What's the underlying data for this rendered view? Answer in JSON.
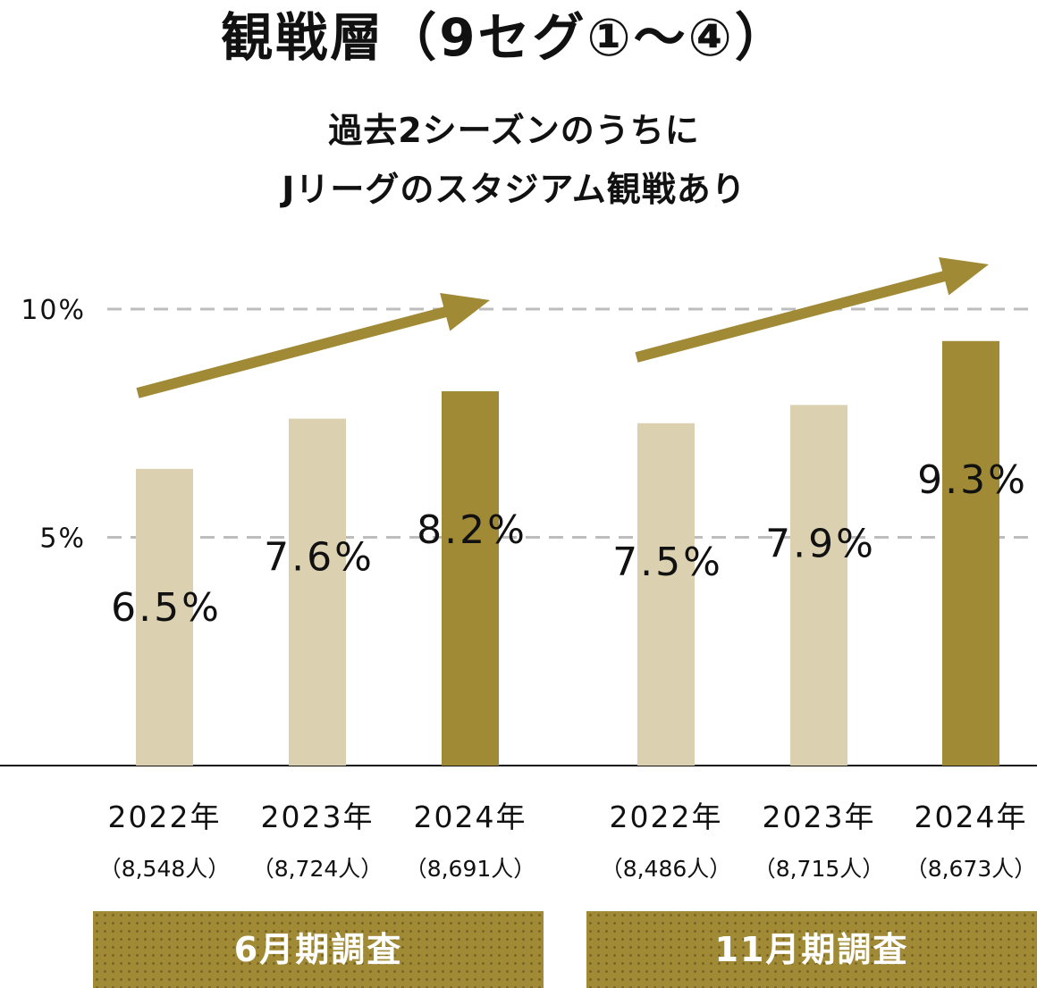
{
  "title": "観戦層（9セグ①～④）",
  "subtitle_lines": [
    "過去2シーズンのうちに",
    "Jリーグのスタジアム観戦あり"
  ],
  "colors": {
    "light_bar": "#dbd1b0",
    "dark_bar": "#a08a36",
    "arrow": "#a08a36",
    "grid": "#bdbdbd",
    "axis": "#111111"
  },
  "chart_data": {
    "type": "bar",
    "title": "観戦層（9セグ①～④）",
    "ylim": [
      0,
      10
    ],
    "yticks": [
      {
        "value": 5,
        "label": "5%"
      },
      {
        "value": 10,
        "label": "10%"
      }
    ],
    "grid": "dashed at ticks",
    "groups": [
      {
        "label": "6月期調査",
        "bars": [
          {
            "year": "2022年",
            "n": "（8,548人）",
            "value": 6.5,
            "label": "6.5%",
            "highlight": false
          },
          {
            "year": "2023年",
            "n": "（8,724人）",
            "value": 7.6,
            "label": "7.6%",
            "highlight": false
          },
          {
            "year": "2024年",
            "n": "（8,691人）",
            "value": 8.2,
            "label": "8.2%",
            "highlight": true
          }
        ]
      },
      {
        "label": "11月期調査",
        "bars": [
          {
            "year": "2022年",
            "n": "（8,486人）",
            "value": 7.5,
            "label": "7.5%",
            "highlight": false
          },
          {
            "year": "2023年",
            "n": "（8,715人）",
            "value": 7.9,
            "label": "7.9%",
            "highlight": false
          },
          {
            "year": "2024年",
            "n": "（8,673人）",
            "value": 9.3,
            "label": "9.3%",
            "highlight": true
          }
        ]
      }
    ],
    "annotations": [
      "upward trend arrow over each group"
    ]
  }
}
